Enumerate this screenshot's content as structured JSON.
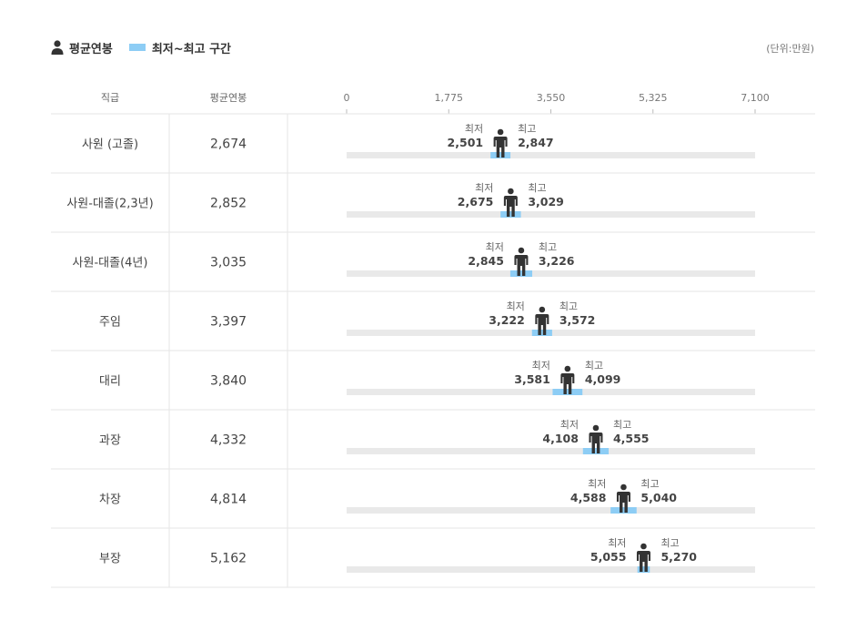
{
  "legend": {
    "avg_label": "평균연봉",
    "range_label": "최저~최고 구간",
    "avg_icon": "person-icon",
    "range_color": "#8dcdf5"
  },
  "unit_label": "(단위:만원)",
  "table_headers": {
    "rank": "직급",
    "avg": "평균연봉"
  },
  "captions": {
    "min": "최저",
    "max": "최고"
  },
  "colors": {
    "track": "#e9e9e9",
    "range": "#8dcdf5",
    "person": "#333333",
    "grid": "#e6e6e6"
  },
  "chart_data": {
    "type": "table",
    "title": "",
    "xlim": [
      0,
      7100
    ],
    "xticks": [
      0,
      1775,
      3550,
      5325,
      7100
    ],
    "xtick_labels": [
      "0",
      "1,775",
      "3,550",
      "5,325",
      "7,100"
    ],
    "rows": [
      {
        "rank": "사원 (고졸)",
        "avg_label": "2,674",
        "avg": 2674,
        "min": 2501,
        "min_label": "2,501",
        "max": 2847,
        "max_label": "2,847"
      },
      {
        "rank": "사원-대졸(2,3년)",
        "avg_label": "2,852",
        "avg": 2852,
        "min": 2675,
        "min_label": "2,675",
        "max": 3029,
        "max_label": "3,029"
      },
      {
        "rank": "사원-대졸(4년)",
        "avg_label": "3,035",
        "avg": 3035,
        "min": 2845,
        "min_label": "2,845",
        "max": 3226,
        "max_label": "3,226"
      },
      {
        "rank": "주임",
        "avg_label": "3,397",
        "avg": 3397,
        "min": 3222,
        "min_label": "3,222",
        "max": 3572,
        "max_label": "3,572"
      },
      {
        "rank": "대리",
        "avg_label": "3,840",
        "avg": 3840,
        "min": 3581,
        "min_label": "3,581",
        "max": 4099,
        "max_label": "4,099"
      },
      {
        "rank": "과장",
        "avg_label": "4,332",
        "avg": 4332,
        "min": 4108,
        "min_label": "4,108",
        "max": 4555,
        "max_label": "4,555"
      },
      {
        "rank": "차장",
        "avg_label": "4,814",
        "avg": 4814,
        "min": 4588,
        "min_label": "4,588",
        "max": 5040,
        "max_label": "5,040"
      },
      {
        "rank": "부장",
        "avg_label": "5,162",
        "avg": 5162,
        "min": 5055,
        "min_label": "5,055",
        "max": 5270,
        "max_label": "5,270"
      }
    ]
  }
}
